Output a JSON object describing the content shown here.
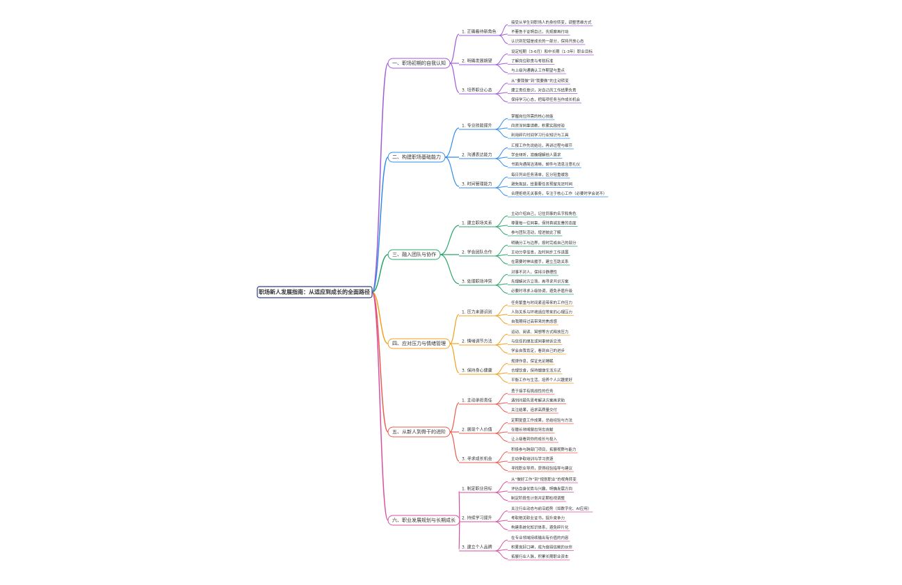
{
  "root": "职场新人发展指南：从适应到成长的全面路径",
  "branches": [
    {
      "label": "一、职场初期的自我认知",
      "color": "#a05ad6",
      "subs": [
        {
          "label": "1. 正确看待新角色",
          "leaves": [
            "接受从学生到职场人的身份转变，调整思维方式",
            "不要急于证明自己，先观察再行动",
            "认识到犯错是成长的一部分，保持开放心态"
          ]
        },
        {
          "label": "2. 明确发展期望",
          "leaves": [
            "设定短期（3-6月）和中长期（1-3年）职业目标",
            "了解岗位职责与考核标准",
            "与上级沟通确认工作期望与重点"
          ]
        },
        {
          "label": "3. 培养职业心态",
          "leaves": [
            "从“要我做”到“我要做”的主动转变",
            "建立责任意识，对自己的工作结果负责",
            "保持学习心态，把每项任务当作成长机会"
          ]
        }
      ]
    },
    {
      "label": "二、构建职场基础能力",
      "color": "#2f8bea",
      "subs": [
        {
          "label": "1. 专业技能提升",
          "leaves": [
            "掌握岗位所需的核心技能",
            "向资深同事请教，积累实践经验",
            "利用碎片时间学习行业知识与工具"
          ]
        },
        {
          "label": "2. 沟通表达能力",
          "leaves": [
            "汇报工作先说结论，再讲过程与细节",
            "学会倾听，准确理解他人需求",
            "书面沟通简洁清晰，邮件与消息注意礼仪"
          ]
        },
        {
          "label": "3. 时间管理能力",
          "leaves": [
            "每日列出任务清单，区分轻重缓急",
            "避免拖延，给重要任务预留充足时间",
            "合理拒绝无关事务，专注于核心工作（必要时学会说不）"
          ]
        }
      ]
    },
    {
      "label": "三、融入团队与协作",
      "color": "#2aa36b",
      "subs": [
        {
          "label": "1. 建立职场关系",
          "leaves": [
            "主动介绍自己，记住同事的名字和角色",
            "尊重每一位同事，保持真诚友善的态度",
            "参与团队活动，增进彼此了解"
          ]
        },
        {
          "label": "2. 学会团队合作",
          "leaves": [
            "明确分工与边界，按时完成自己的部分",
            "主动分享信息，及时同步工作进展",
            "在需要时伸出援手，建立互助关系"
          ]
        },
        {
          "label": "3. 处理职场冲突",
          "leaves": [
            "对事不对人，保持冷静理性",
            "先理解对方立场，再寻求共识方案",
            "必要时寻求上级协调，避免矛盾升级"
          ]
        }
      ]
    },
    {
      "label": "四、应对压力与情绪管理",
      "color": "#f0a020",
      "subs": [
        {
          "label": "1. 压力来源识别",
          "leaves": [
            "任务繁重与时间紧迫带来的工作压力",
            "人际关系与环境适应带来的心理压力",
            "自我期待过高带来的焦虑感"
          ]
        },
        {
          "label": "2. 情绪调节方法",
          "leaves": [
            "运动、阅读、冥想等方式释放压力",
            "与信任的朋友或同事倾诉交流",
            "学会自我肯定，看到自己的进步"
          ]
        },
        {
          "label": "3. 保持身心健康",
          "leaves": [
            "规律作息，保证充足睡眠",
            "合理饮食，保持健康生活方式",
            "平衡工作与生活，培养个人兴趣爱好"
          ]
        }
      ]
    },
    {
      "label": "五、从新人到骨干的进阶",
      "color": "#ea5b4f",
      "subs": [
        {
          "label": "1. 主动承担责任",
          "leaves": [
            "勇于接手有挑战性的任务",
            "遇到问题先思考解决方案再求助",
            "关注结果，追求高质量交付"
          ]
        },
        {
          "label": "2. 展现个人价值",
          "leaves": [
            "定期复盘工作成果，总结经验与方法",
            "在擅长领域做出突出贡献",
            "让上级看到你的成长与投入"
          ]
        },
        {
          "label": "3. 寻求成长机会",
          "leaves": [
            "积极参与跨部门项目，拓展视野与能力",
            "主动争取培训与学习资源",
            "寻找职业导师，获得经验指导与建议"
          ]
        }
      ]
    },
    {
      "label": "六、职业发展规划与长期成长",
      "color": "#d94fa0",
      "subs": [
        {
          "label": "1. 制定职业目标",
          "leaves": [
            "从“做好工作”到“规划职业”的视角转变",
            "评估自身优势与兴趣，明确发展方向",
            "制定阶段性计划并定期检视调整"
          ]
        },
        {
          "label": "2. 持续学习提升",
          "leaves": [
            "关注行业动态与前沿趋势（如数字化、AI应用）",
            "考取相关职业证书，提升竞争力",
            "构建系统化知识体系，避免碎片化"
          ]
        },
        {
          "label": "3. 建立个人品牌",
          "leaves": [
            "在专业领域持续输出有价值的内容",
            "积累良好口碑，成为值得信赖的伙伴",
            "拓展行业人脉，积累长期职业资本"
          ]
        }
      ]
    }
  ]
}
